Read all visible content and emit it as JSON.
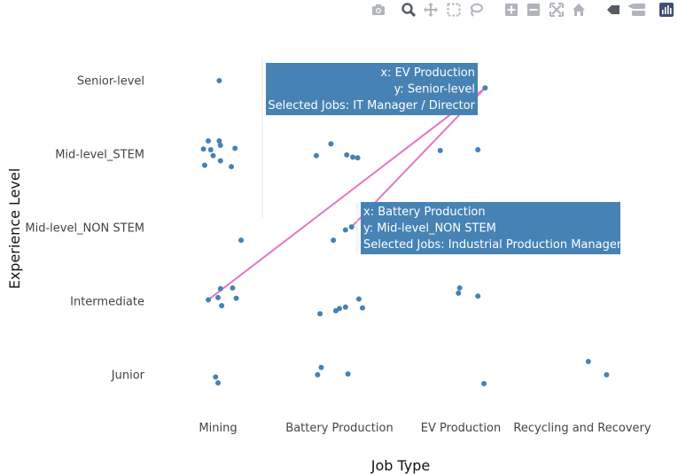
{
  "chart_data": {
    "type": "scatter",
    "xlabel": "Job Type",
    "ylabel": "Experience Level",
    "categories_x": [
      "Mining",
      "Battery Production",
      "EV Production",
      "Recycling and Recovery"
    ],
    "categories_y": [
      "Junior",
      "Intermediate",
      "Mid-level_NON STEM",
      "Mid-level_STEM",
      "Senior-level"
    ],
    "marker_color": "#4682b4",
    "line_color": "#e377c2",
    "label_bg": "#4682b4",
    "points": [
      {
        "x": "Mining",
        "dx": 0.01,
        "y": "Senior-level",
        "dy": 0.0
      },
      {
        "x": "Mining",
        "dx": -0.08,
        "y": "Mid-level_STEM",
        "dy": 0.18
      },
      {
        "x": "Mining",
        "dx": 0.01,
        "y": "Mid-level_STEM",
        "dy": 0.18
      },
      {
        "x": "Mining",
        "dx": 0.02,
        "y": "Mid-level_STEM",
        "dy": 0.12
      },
      {
        "x": "Mining",
        "dx": -0.12,
        "y": "Mid-level_STEM",
        "dy": 0.07
      },
      {
        "x": "Mining",
        "dx": -0.06,
        "y": "Mid-level_STEM",
        "dy": 0.06
      },
      {
        "x": "Mining",
        "dx": 0.14,
        "y": "Mid-level_STEM",
        "dy": 0.08
      },
      {
        "x": "Mining",
        "dx": -0.04,
        "y": "Mid-level_STEM",
        "dy": -0.02
      },
      {
        "x": "Mining",
        "dx": 0.02,
        "y": "Mid-level_STEM",
        "dy": -0.09
      },
      {
        "x": "Mining",
        "dx": -0.11,
        "y": "Mid-level_STEM",
        "dy": -0.15
      },
      {
        "x": "Mining",
        "dx": 0.11,
        "y": "Mid-level_STEM",
        "dy": -0.17
      },
      {
        "x": "Mining",
        "dx": 0.19,
        "y": "Mid-level_NON STEM",
        "dy": -0.17
      },
      {
        "x": "Mining",
        "dx": 0.02,
        "y": "Intermediate",
        "dy": 0.17
      },
      {
        "x": "Mining",
        "dx": 0.12,
        "y": "Intermediate",
        "dy": 0.18
      },
      {
        "x": "Mining",
        "dx": -0.08,
        "y": "Intermediate",
        "dy": 0.02
      },
      {
        "x": "Mining",
        "dx": 0.0,
        "y": "Intermediate",
        "dy": 0.05
      },
      {
        "x": "Mining",
        "dx": 0.15,
        "y": "Intermediate",
        "dy": 0.04
      },
      {
        "x": "Mining",
        "dx": 0.03,
        "y": "Intermediate",
        "dy": -0.06
      },
      {
        "x": "Mining",
        "dx": -0.02,
        "y": "Junior",
        "dy": -0.03
      },
      {
        "x": "Mining",
        "dx": 0.0,
        "y": "Junior",
        "dy": -0.11
      },
      {
        "x": "Battery Production",
        "dx": -0.07,
        "y": "Mid-level_STEM",
        "dy": 0.14
      },
      {
        "x": "Battery Production",
        "dx": -0.19,
        "y": "Mid-level_STEM",
        "dy": -0.02
      },
      {
        "x": "Battery Production",
        "dx": 0.06,
        "y": "Mid-level_STEM",
        "dy": -0.01
      },
      {
        "x": "Battery Production",
        "dx": 0.11,
        "y": "Mid-level_STEM",
        "dy": -0.04
      },
      {
        "x": "Battery Production",
        "dx": 0.15,
        "y": "Mid-level_STEM",
        "dy": -0.05
      },
      {
        "x": "Battery Production",
        "dx": 0.05,
        "y": "Mid-level_NON STEM",
        "dy": -0.03
      },
      {
        "x": "Battery Production",
        "dx": 0.1,
        "y": "Mid-level_NON STEM",
        "dy": 0.01
      },
      {
        "x": "Battery Production",
        "dx": -0.05,
        "y": "Mid-level_NON STEM",
        "dy": -0.17
      },
      {
        "x": "Battery Production",
        "dx": 0.16,
        "y": "Intermediate",
        "dy": 0.03
      },
      {
        "x": "Battery Production",
        "dx": 0.05,
        "y": "Intermediate",
        "dy": -0.08
      },
      {
        "x": "Battery Production",
        "dx": 0.0,
        "y": "Intermediate",
        "dy": -0.1
      },
      {
        "x": "Battery Production",
        "dx": -0.03,
        "y": "Intermediate",
        "dy": -0.13
      },
      {
        "x": "Battery Production",
        "dx": 0.19,
        "y": "Intermediate",
        "dy": -0.09
      },
      {
        "x": "Battery Production",
        "dx": -0.16,
        "y": "Intermediate",
        "dy": -0.17
      },
      {
        "x": "Battery Production",
        "dx": -0.15,
        "y": "Junior",
        "dy": 0.1
      },
      {
        "x": "Battery Production",
        "dx": -0.18,
        "y": "Junior",
        "dy": 0.0
      },
      {
        "x": "Battery Production",
        "dx": 0.07,
        "y": "Junior",
        "dy": 0.01
      },
      {
        "x": "EV Production",
        "dx": -0.17,
        "y": "Mid-level_STEM",
        "dy": 0.05
      },
      {
        "x": "EV Production",
        "dx": 0.14,
        "y": "Mid-level_STEM",
        "dy": 0.06
      },
      {
        "x": "EV Production",
        "dx": 0.2,
        "y": "Senior-level",
        "dy": -0.1
      },
      {
        "x": "EV Production",
        "dx": -0.01,
        "y": "Intermediate",
        "dy": 0.18
      },
      {
        "x": "EV Production",
        "dx": -0.02,
        "y": "Intermediate",
        "dy": 0.11
      },
      {
        "x": "EV Production",
        "dx": 0.14,
        "y": "Intermediate",
        "dy": 0.07
      },
      {
        "x": "EV Production",
        "dx": 0.19,
        "y": "Junior",
        "dy": -0.12
      },
      {
        "x": "Recycling and Recovery",
        "dx": 0.05,
        "y": "Junior",
        "dy": 0.18
      },
      {
        "x": "Recycling and Recovery",
        "dx": 0.2,
        "y": "Junior",
        "dy": 0.0
      }
    ],
    "selection_lines": [
      {
        "from": {
          "x": "Mining",
          "dx": -0.08,
          "y": "Intermediate",
          "dy": 0.02
        },
        "to": {
          "x": "EV Production",
          "dx": 0.2,
          "y": "Senior-level",
          "dy": -0.1
        }
      },
      {
        "from": {
          "x": "Battery Production",
          "dx": 0.1,
          "y": "Mid-level_NON STEM",
          "dy": 0.01
        },
        "to": {
          "x": "EV Production",
          "dx": 0.2,
          "y": "Senior-level",
          "dy": -0.1
        }
      }
    ],
    "hover_labels": [
      {
        "anchor": "right",
        "lines": [
          "x: EV Production",
          "y: Senior-level",
          "Selected Jobs: IT Manager / Director"
        ]
      },
      {
        "anchor": "left",
        "lines": [
          "x: Battery Production",
          "y: Mid-level_NON STEM",
          "Selected Jobs: Industrial Production Manager"
        ]
      }
    ]
  },
  "modebar": {
    "icons": [
      "camera-icon",
      "zoom-icon",
      "pan-icon",
      "box-select-icon",
      "lasso-icon",
      "zoom-in-icon",
      "zoom-out-icon",
      "autoscale-icon",
      "reset-axes-icon",
      "spike-lines-icon",
      "compare-hover-icon",
      "plotly-logo-icon"
    ]
  }
}
